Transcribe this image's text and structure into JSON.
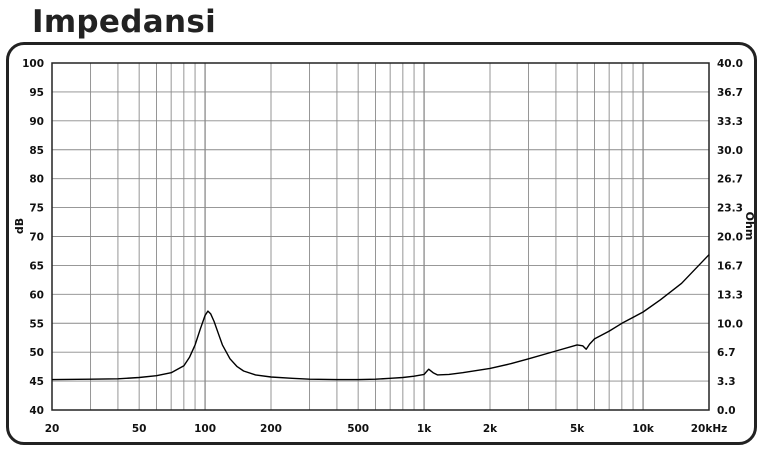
{
  "page": {
    "title": "Impedansi"
  },
  "chart_data": {
    "type": "line",
    "title": "Impedansi",
    "xlabel": "",
    "ylabel_left": "dB",
    "ylabel_right": "Ohm",
    "x_scale": "log",
    "xlim": [
      20,
      20000
    ],
    "ylim_left": [
      40,
      100
    ],
    "ylim_right": [
      0.0,
      40.0
    ],
    "grid": true,
    "x_tick_labels": [
      {
        "value": 20,
        "label": "20"
      },
      {
        "value": 50,
        "label": "50"
      },
      {
        "value": 100,
        "label": "100"
      },
      {
        "value": 200,
        "label": "200"
      },
      {
        "value": 500,
        "label": "500"
      },
      {
        "value": 1000,
        "label": "1k"
      },
      {
        "value": 2000,
        "label": "2k"
      },
      {
        "value": 5000,
        "label": "5k"
      },
      {
        "value": 10000,
        "label": "10k"
      },
      {
        "value": 20000,
        "label": "20kHz"
      }
    ],
    "y_left_ticks": [
      "100",
      "95",
      "90",
      "85",
      "80",
      "75",
      "70",
      "65",
      "60",
      "55",
      "50",
      "45",
      "40"
    ],
    "y_right_ticks": [
      "40.0",
      "36.7",
      "33.3",
      "30.0",
      "26.7",
      "23.3",
      "20.0",
      "16.7",
      "13.3",
      "10.0",
      "6.7",
      "3.3",
      "0.0"
    ],
    "series": [
      {
        "color": "#000000",
        "x": [
          20,
          30,
          40,
          50,
          60,
          70,
          80,
          85,
          90,
          95,
          100,
          103,
          106,
          110,
          115,
          120,
          130,
          140,
          150,
          170,
          200,
          250,
          300,
          400,
          500,
          600,
          700,
          800,
          900,
          1000,
          1050,
          1100,
          1150,
          1300,
          1500,
          2000,
          2500,
          3000,
          4000,
          5000,
          5300,
          5500,
          5700,
          6000,
          7000,
          8000,
          10000,
          12000,
          15000,
          20000
        ],
        "y": [
          3.5,
          3.55,
          3.6,
          3.75,
          3.95,
          4.3,
          5.1,
          6.1,
          7.5,
          9.3,
          10.9,
          11.4,
          11.1,
          10.2,
          8.8,
          7.5,
          5.9,
          5.0,
          4.5,
          4.05,
          3.8,
          3.65,
          3.55,
          3.5,
          3.5,
          3.55,
          3.65,
          3.75,
          3.9,
          4.1,
          4.7,
          4.3,
          4.05,
          4.1,
          4.3,
          4.8,
          5.35,
          5.9,
          6.8,
          7.5,
          7.4,
          7.0,
          7.6,
          8.2,
          9.1,
          10.0,
          11.3,
          12.7,
          14.6,
          17.9
        ]
      }
    ]
  }
}
